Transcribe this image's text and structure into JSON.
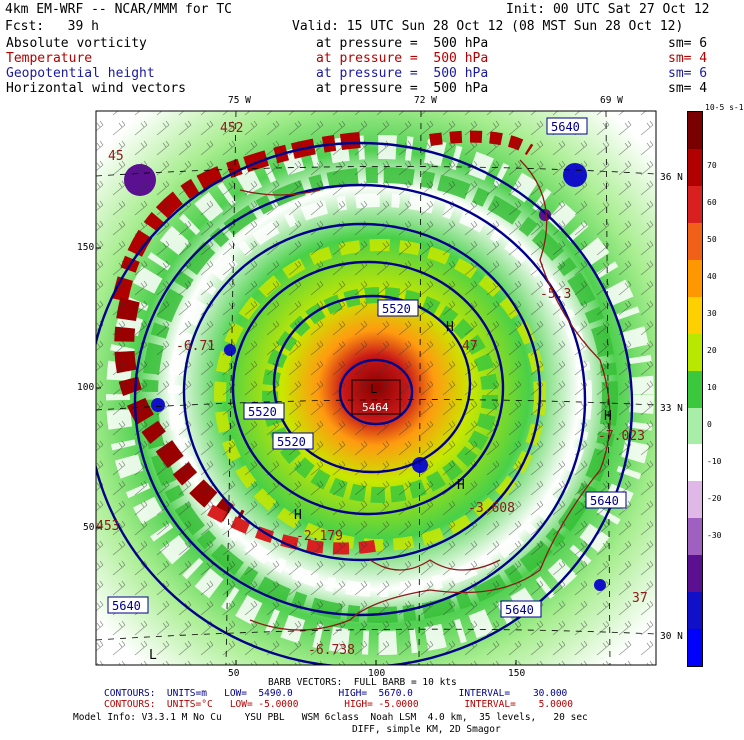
{
  "header": {
    "model": "4km EM-WRF -- NCAR/MMM for TC",
    "init": "Init: 00 UTC Sat 27 Oct 12",
    "fcst": "Fcst:   39 h",
    "valid": "Valid: 15 UTC Sun 28 Oct 12 (08 MST Sun 28 Oct 12)"
  },
  "fields": [
    {
      "name": "Absolute vorticity",
      "level": "at pressure =  500 hPa",
      "sm": "sm= 6",
      "color": "#000000"
    },
    {
      "name": "Temperature",
      "level": "at pressure =  500 hPa",
      "sm": "sm= 4",
      "color": "#b40000"
    },
    {
      "name": "Geopotential height",
      "level": "at pressure =  500 hPa",
      "sm": "sm= 6",
      "color": "#1a1aa0"
    },
    {
      "name": "Horizontal wind vectors",
      "level": "at pressure =  500 hPa",
      "sm": "sm= 4",
      "color": "#000000"
    }
  ],
  "axes": {
    "top_lon": [
      "75 W",
      "72 W",
      "69 W"
    ],
    "right_lat": [
      "36 N",
      "33 N",
      "30 N"
    ],
    "left_grid": [
      "150",
      "100",
      "50"
    ],
    "bottom_grid": [
      "50",
      "100",
      "150"
    ]
  },
  "colorbar": {
    "units": "10-5 s-1",
    "labels": [
      "70",
      "60",
      "50",
      "40",
      "30",
      "20",
      "10",
      "0",
      "-10",
      "-20",
      "-30"
    ],
    "colors": [
      "#7a0000",
      "#b00000",
      "#d82020",
      "#f06018",
      "#ff9800",
      "#ffd000",
      "#b8e800",
      "#3cc83c",
      "#a8eea8",
      "#ffffff",
      "#e0b8e8",
      "#a060c0",
      "#5a1090",
      "#1010c8",
      "#0000ff"
    ]
  },
  "map_labels": {
    "height_boxes": [
      "5640",
      "5520",
      "5520",
      "5520",
      "5464",
      "5640",
      "5640",
      "5640"
    ],
    "low_label": "L",
    "high_label": "H",
    "temp_values": [
      "452",
      "-5.3",
      "47",
      "-6.71",
      "-3.608",
      "-7.023",
      "-2.179",
      "-6.738",
      "453",
      "45",
      "37"
    ],
    "center_label": "5464"
  },
  "footer": {
    "barb": "BARB VECTORS:  FULL BARB = 10 kts",
    "contours_height": "CONTOURS:  UNITS=m   LOW=  5490.0        HIGH=  5670.0        INTERVAL=    30.000",
    "contours_temp": "CONTOURS:  UNITS=°C   LOW= -5.0000        HIGH= -5.0000        INTERVAL=    5.0000",
    "model_info": "Model Info: V3.3.1 M No Cu    YSU PBL   WSM 6class  Noah LSM  4.0 km,  35 levels,   20 sec",
    "diff": "DIFF, simple KM, 2D Smagor"
  }
}
